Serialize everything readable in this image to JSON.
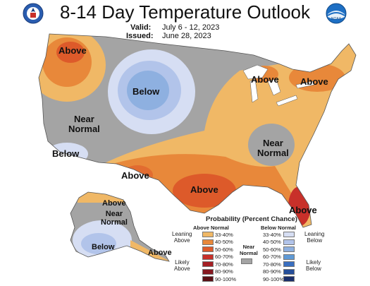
{
  "header": {
    "title": "8-14 Day Temperature Outlook",
    "valid_label": "Valid:",
    "valid_value": "July 6 - 12, 2023",
    "issued_label": "Issued:",
    "issued_value": "June 28, 2023"
  },
  "logos": {
    "left": "doc-seal-icon",
    "right": "noaa-logo-icon",
    "noaa_text": "NOAA"
  },
  "regions": [
    {
      "id": "pnw",
      "label": "Above"
    },
    {
      "id": "north-plains",
      "label": "Below"
    },
    {
      "id": "west",
      "label": "Near\nNormal"
    },
    {
      "id": "socal",
      "label": "Below"
    },
    {
      "id": "great-lakes",
      "label": "Above"
    },
    {
      "id": "northeast",
      "label": "Above"
    },
    {
      "id": "ohio-valley",
      "label": "Near\nNormal"
    },
    {
      "id": "texas-west",
      "label": "Above"
    },
    {
      "id": "gulf",
      "label": "Above"
    },
    {
      "id": "florida",
      "label": "Above"
    },
    {
      "id": "ak-north",
      "label": "Above"
    },
    {
      "id": "ak-mid",
      "label": "Near\nNormal"
    },
    {
      "id": "ak-south",
      "label": "Below"
    },
    {
      "id": "ak-southeast",
      "label": "Above"
    }
  ],
  "legend": {
    "title": "Probability (Percent Chance)",
    "above_header": "Above Normal",
    "below_header": "Below Normal",
    "near_label": "Near\nNormal",
    "leaning_above": "Leaning\nAbove",
    "likely_above": "Likely\nAbove",
    "leaning_below": "Leaning\nBelow",
    "likely_below": "Likely\nBelow",
    "ranges": [
      "33-40%",
      "40-50%",
      "50-60%",
      "60-70%",
      "70-80%",
      "80-90%",
      "90-100%"
    ],
    "above_colors": [
      "#f0b866",
      "#e8883a",
      "#dd5a2a",
      "#c8302a",
      "#a51f24",
      "#861820",
      "#5a0f14"
    ],
    "below_colors": [
      "#d6def3",
      "#b2c4ea",
      "#8eb0e0",
      "#5f9ad6",
      "#3a6fc0",
      "#264f9a",
      "#1a2f6a"
    ],
    "near_color": "#a4a4a4"
  }
}
